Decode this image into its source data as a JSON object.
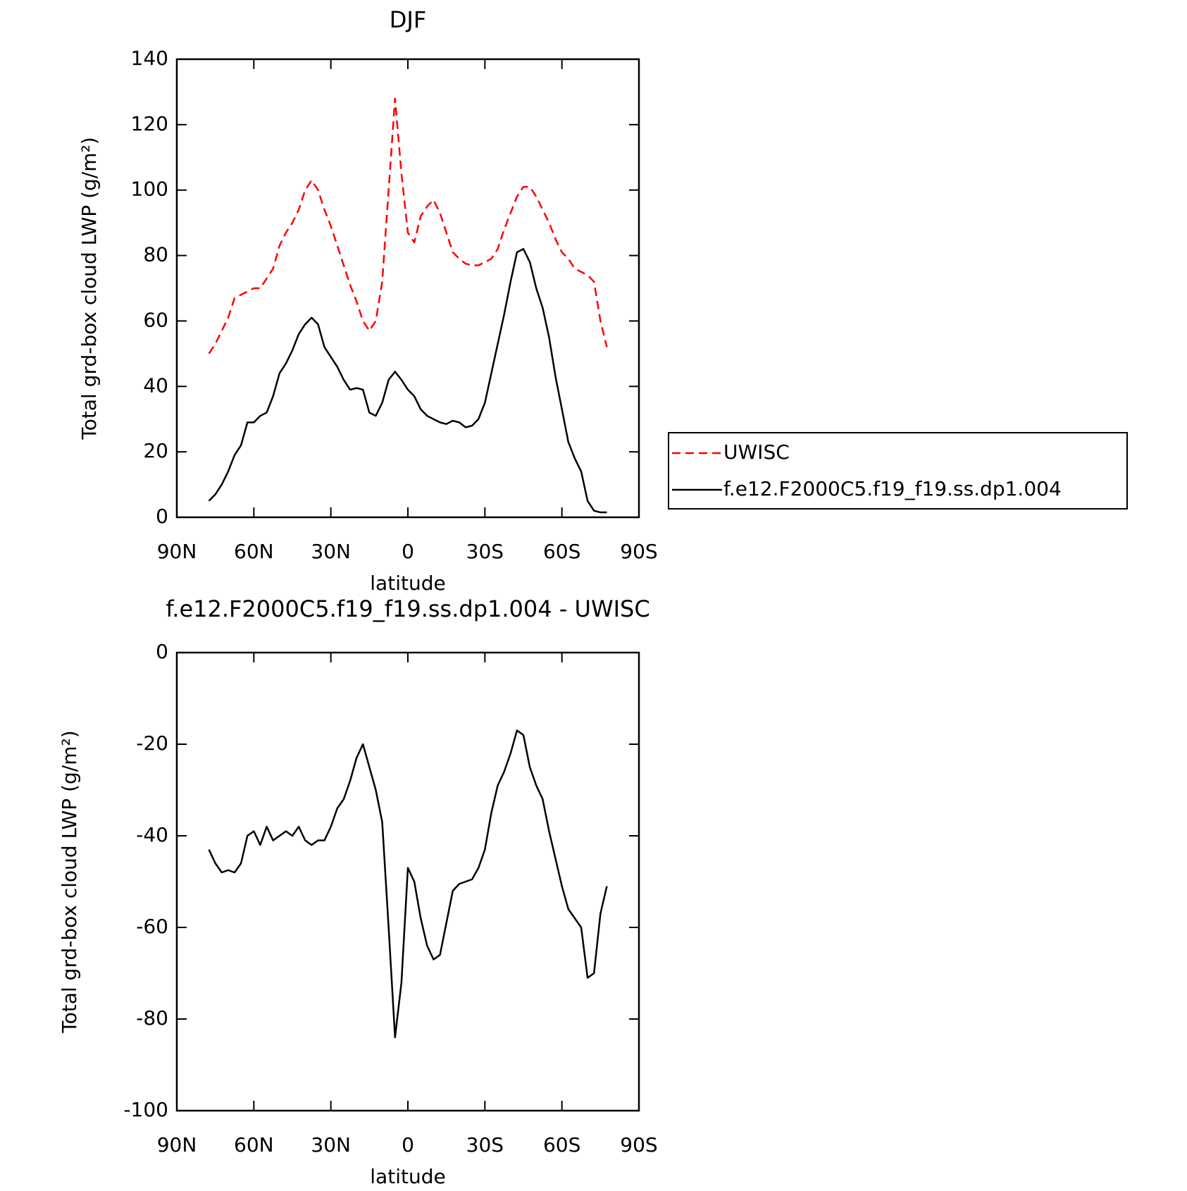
{
  "chart_data": [
    {
      "type": "line",
      "title": "DJF",
      "xlabel": "latitude",
      "ylabel": "Total grd-box cloud LWP (g/m²)",
      "x": [
        77.5,
        75,
        72.5,
        70,
        67.5,
        65,
        62.5,
        60,
        57.5,
        55,
        52.5,
        50,
        47.5,
        45,
        42.5,
        40,
        37.5,
        35,
        32.5,
        30,
        27.5,
        25,
        22.5,
        20,
        17.5,
        15,
        12.5,
        10,
        7.5,
        5,
        2.5,
        0,
        -2.5,
        -5,
        -7.5,
        -10,
        -12.5,
        -15,
        -17.5,
        -20,
        -22.5,
        -25,
        -27.5,
        -30,
        -32.5,
        -35,
        -37.5,
        -40,
        -42.5,
        -45,
        -47.5,
        -50,
        -52.5,
        -55,
        -57.5,
        -60,
        -62.5,
        -65,
        -67.5,
        -70,
        -72.5,
        -75,
        -77.5
      ],
      "series": [
        {
          "name": "UWISC",
          "color": "#ff0000",
          "style": "dashed",
          "values": [
            50,
            53,
            57,
            61,
            67,
            68,
            69,
            70,
            70,
            73,
            76,
            83,
            87,
            90,
            94,
            100,
            103,
            100,
            94,
            89,
            83,
            77,
            71,
            66,
            60,
            57,
            60,
            72,
            100,
            128,
            105,
            87,
            84,
            92,
            95,
            97,
            93,
            87,
            81,
            79,
            77.5,
            77,
            77,
            78,
            79,
            82,
            88,
            93,
            98,
            101,
            101,
            98,
            94,
            90,
            85,
            81,
            79,
            76,
            75,
            74,
            72,
            60,
            52
          ]
        },
        {
          "name": "f.e12.F2000C5.f19_f19.ss.dp1.004",
          "color": "#000000",
          "style": "solid",
          "values": [
            5,
            7,
            10,
            14,
            19,
            22,
            29,
            29,
            31,
            32,
            37,
            44,
            47,
            51,
            56,
            59,
            61,
            59,
            52,
            49,
            46,
            42,
            39,
            39.5,
            39,
            32,
            31,
            35,
            42,
            44.5,
            42,
            39,
            37,
            33,
            31,
            30,
            29,
            28.5,
            29.5,
            29,
            27.5,
            28,
            30,
            35,
            44,
            53,
            62,
            72,
            81,
            82,
            78,
            70,
            64,
            55,
            43,
            33,
            23,
            18,
            14,
            5,
            2,
            1.5,
            1.5
          ]
        }
      ],
      "xlim": [
        90,
        -90
      ],
      "xticks": [
        {
          "value": 90,
          "label": "90N"
        },
        {
          "value": 60,
          "label": "60N"
        },
        {
          "value": 30,
          "label": "30N"
        },
        0,
        {
          "value": -30,
          "label": "30S"
        },
        {
          "value": -60,
          "label": "60S"
        },
        {
          "value": -90,
          "label": "90S"
        }
      ],
      "ylim": [
        0,
        140
      ],
      "yticks": [
        0,
        20,
        40,
        60,
        80,
        100,
        120,
        140
      ],
      "legend": "right"
    },
    {
      "type": "line",
      "title": "f.e12.F2000C5.f19_f19.ss.dp1.004 - UWISC",
      "xlabel": "latitude",
      "ylabel": "Total grd-box cloud LWP (g/m²)",
      "x": [
        77.5,
        75,
        72.5,
        70,
        67.5,
        65,
        62.5,
        60,
        57.5,
        55,
        52.5,
        50,
        47.5,
        45,
        42.5,
        40,
        37.5,
        35,
        32.5,
        30,
        27.5,
        25,
        22.5,
        20,
        17.5,
        15,
        12.5,
        10,
        7.5,
        5,
        2.5,
        0,
        -2.5,
        -5,
        -7.5,
        -10,
        -12.5,
        -15,
        -17.5,
        -20,
        -22.5,
        -25,
        -27.5,
        -30,
        -32.5,
        -35,
        -37.5,
        -40,
        -42.5,
        -45,
        -47.5,
        -50,
        -52.5,
        -55,
        -57.5,
        -60,
        -62.5,
        -65,
        -67.5,
        -70,
        -72.5,
        -75,
        -77.5
      ],
      "series": [
        {
          "color": "#000000",
          "style": "solid",
          "values": [
            -43,
            -46,
            -48,
            -47.5,
            -48,
            -46,
            -40,
            -39,
            -42,
            -38,
            -41,
            -40,
            -39,
            -40,
            -38,
            -41,
            -42,
            -41,
            -41,
            -38,
            -34,
            -32,
            -28,
            -23,
            -20,
            -25,
            -30,
            -37,
            -60,
            -84,
            -72,
            -47,
            -50,
            -58,
            -64,
            -67,
            -66,
            -59,
            -52,
            -50.5,
            -50,
            -49.5,
            -47,
            -43,
            -35,
            -29,
            -26,
            -22,
            -17,
            -18,
            -25,
            -29,
            -32,
            -39,
            -45,
            -51,
            -56,
            -58,
            -60,
            -71,
            -70,
            -57,
            -51
          ]
        }
      ],
      "xlim": [
        90,
        -90
      ],
      "xticks": [
        {
          "value": 90,
          "label": "90N"
        },
        {
          "value": 60,
          "label": "60N"
        },
        {
          "value": 30,
          "label": "30N"
        },
        0,
        {
          "value": -30,
          "label": "30S"
        },
        {
          "value": -60,
          "label": "60S"
        },
        {
          "value": -90,
          "label": "90S"
        }
      ],
      "ylim": [
        -100,
        0
      ],
      "yticks": [
        -100,
        -80,
        -60,
        -40,
        -20,
        0
      ]
    }
  ]
}
